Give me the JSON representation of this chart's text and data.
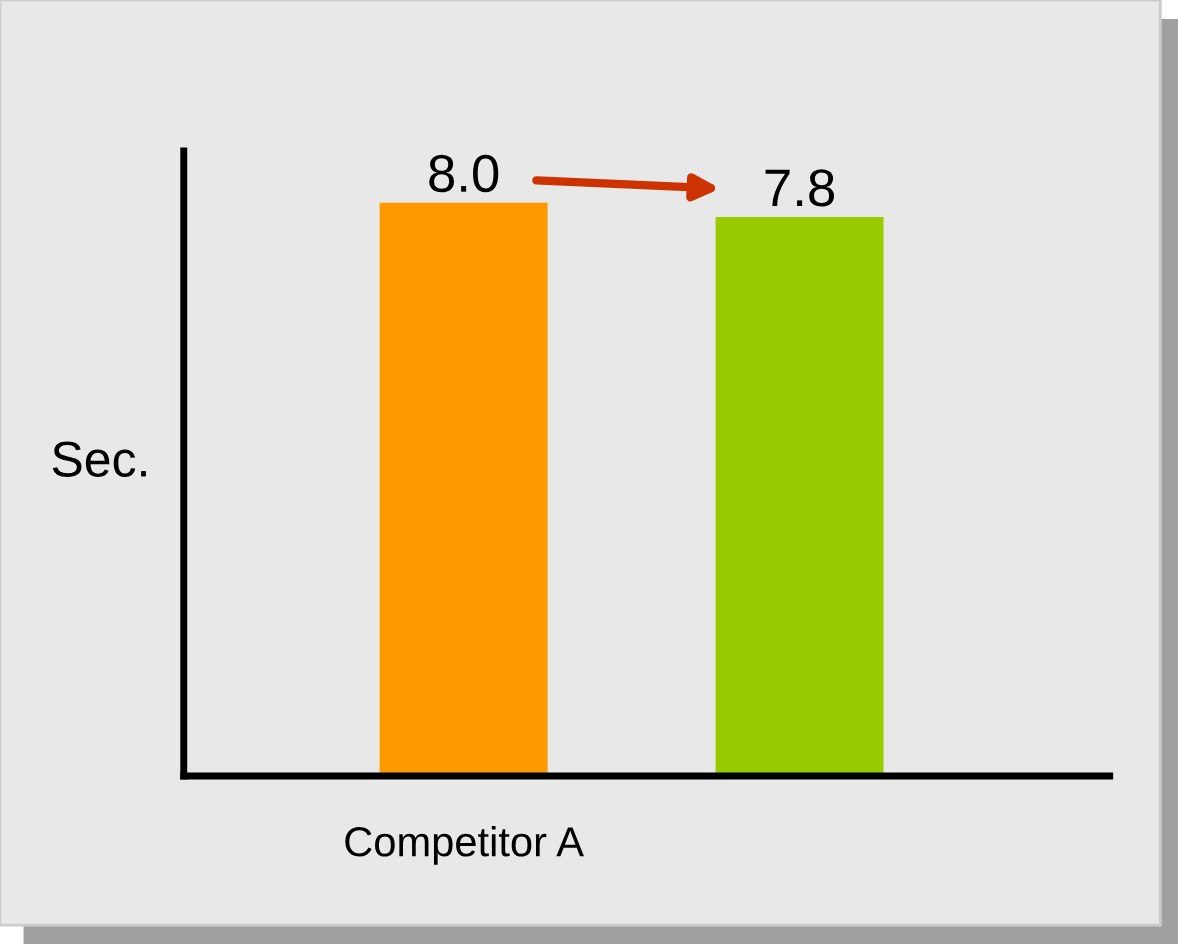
{
  "chart_data": {
    "type": "bar",
    "categories": [
      "Competitor A",
      null
    ],
    "ylabel": "Sec.",
    "values": [
      8.0,
      7.8
    ],
    "value_labels": [
      "8.0",
      "7.8"
    ],
    "colors": [
      "#ff9900",
      "#99cc00"
    ],
    "tick_labels": "x",
    "grid": false,
    "legend": false
  }
}
